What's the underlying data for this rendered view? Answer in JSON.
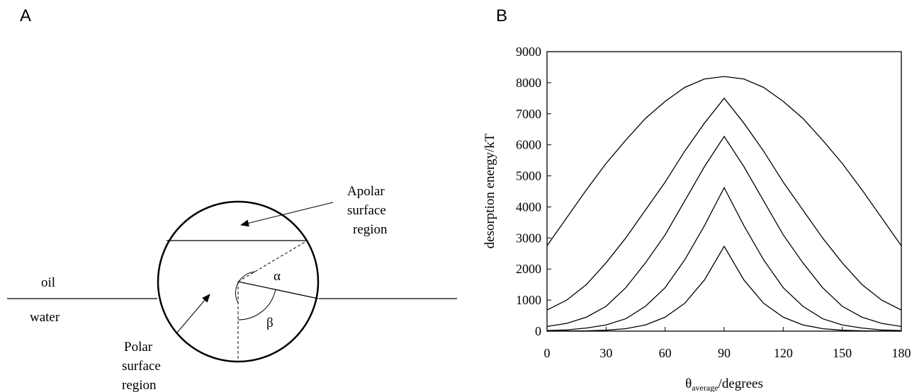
{
  "panel_labels": [
    "A",
    "B"
  ],
  "diagram": {
    "apolar_label": [
      "Apolar",
      "surface",
      "region"
    ],
    "polar_label": [
      "Polar",
      "surface",
      "region"
    ],
    "oil_label": "oil",
    "water_label": "water",
    "alpha_label": "α",
    "beta_label": "β"
  },
  "chart_data": {
    "type": "line",
    "x_label": {
      "symbol": "θ",
      "subscript": "average",
      "text": "/degrees"
    },
    "y_label": "desorption energy/kT",
    "x": [
      0,
      10,
      20,
      30,
      40,
      50,
      60,
      70,
      80,
      90,
      100,
      110,
      120,
      130,
      140,
      150,
      160,
      170,
      180
    ],
    "series": [
      {
        "color": "#000000",
        "values": [
          2750,
          3650,
          4550,
          5400,
          6150,
          6850,
          7400,
          7850,
          8120,
          8200,
          8120,
          7850,
          7400,
          6850,
          6150,
          5400,
          4550,
          3650,
          2750
        ]
      },
      {
        "color": "#000000",
        "values": [
          680,
          1000,
          1500,
          2200,
          3000,
          3900,
          4800,
          5800,
          6700,
          7500,
          6700,
          5800,
          4800,
          3900,
          3000,
          2200,
          1500,
          1000,
          680
        ]
      },
      {
        "color": "#000000",
        "values": [
          150,
          250,
          450,
          800,
          1400,
          2200,
          3100,
          4200,
          5300,
          6270,
          5300,
          4200,
          3100,
          2200,
          1400,
          800,
          450,
          250,
          150
        ]
      },
      {
        "color": "#000000",
        "values": [
          20,
          40,
          100,
          200,
          400,
          800,
          1400,
          2300,
          3400,
          4620,
          3400,
          2300,
          1400,
          800,
          400,
          200,
          100,
          40,
          20
        ]
      },
      {
        "color": "#000000",
        "values": [
          0,
          5,
          10,
          30,
          80,
          200,
          450,
          900,
          1650,
          2730,
          1650,
          900,
          450,
          200,
          80,
          30,
          10,
          5,
          0
        ]
      }
    ],
    "xlim": [
      0,
      180
    ],
    "xticks": [
      0,
      30,
      60,
      90,
      120,
      150,
      180
    ],
    "ylim": [
      0,
      9000
    ],
    "yticks": [
      0,
      1000,
      2000,
      3000,
      4000,
      5000,
      6000,
      7000,
      8000,
      9000
    ]
  }
}
